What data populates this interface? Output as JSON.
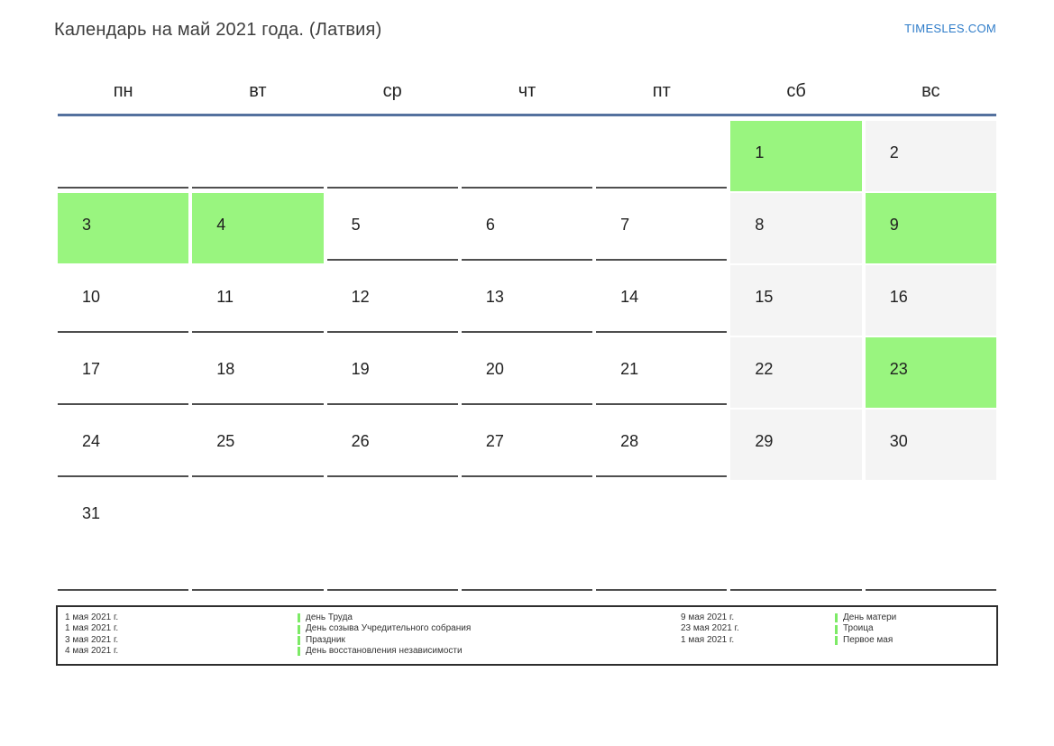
{
  "page": {
    "title": "Календарь на май 2021 года. (Латвия)",
    "brand": "TIMESLES.COM"
  },
  "calendar": {
    "weekdays": [
      "пн",
      "вт",
      "ср",
      "чт",
      "пт",
      "сб",
      "вс"
    ],
    "weeks": [
      [
        {
          "day": "",
          "type": "empty"
        },
        {
          "day": "",
          "type": "empty"
        },
        {
          "day": "",
          "type": "empty"
        },
        {
          "day": "",
          "type": "empty"
        },
        {
          "day": "",
          "type": "empty"
        },
        {
          "day": "1",
          "type": "holiday"
        },
        {
          "day": "2",
          "type": "weekend"
        }
      ],
      [
        {
          "day": "3",
          "type": "holiday"
        },
        {
          "day": "4",
          "type": "holiday"
        },
        {
          "day": "5",
          "type": "normal"
        },
        {
          "day": "6",
          "type": "normal"
        },
        {
          "day": "7",
          "type": "normal"
        },
        {
          "day": "8",
          "type": "weekend"
        },
        {
          "day": "9",
          "type": "holiday"
        }
      ],
      [
        {
          "day": "10",
          "type": "normal"
        },
        {
          "day": "11",
          "type": "normal"
        },
        {
          "day": "12",
          "type": "normal"
        },
        {
          "day": "13",
          "type": "normal"
        },
        {
          "day": "14",
          "type": "normal"
        },
        {
          "day": "15",
          "type": "weekend"
        },
        {
          "day": "16",
          "type": "weekend"
        }
      ],
      [
        {
          "day": "17",
          "type": "normal"
        },
        {
          "day": "18",
          "type": "normal"
        },
        {
          "day": "19",
          "type": "normal"
        },
        {
          "day": "20",
          "type": "normal"
        },
        {
          "day": "21",
          "type": "normal"
        },
        {
          "day": "22",
          "type": "weekend"
        },
        {
          "day": "23",
          "type": "holiday"
        }
      ],
      [
        {
          "day": "24",
          "type": "normal"
        },
        {
          "day": "25",
          "type": "normal"
        },
        {
          "day": "26",
          "type": "normal"
        },
        {
          "day": "27",
          "type": "normal"
        },
        {
          "day": "28",
          "type": "normal"
        },
        {
          "day": "29",
          "type": "weekend"
        },
        {
          "day": "30",
          "type": "weekend"
        }
      ],
      [
        {
          "day": "31",
          "type": "normal"
        },
        {
          "day": "",
          "type": "empty"
        },
        {
          "day": "",
          "type": "empty"
        },
        {
          "day": "",
          "type": "empty"
        },
        {
          "day": "",
          "type": "empty"
        },
        {
          "day": "",
          "type": "empty"
        },
        {
          "day": "",
          "type": "empty"
        }
      ]
    ]
  },
  "legend": {
    "left": [
      {
        "date": "1 мая 2021 г.",
        "name": "день Труда"
      },
      {
        "date": "1 мая 2021 г.",
        "name": "День созыва Учредительного собрания"
      },
      {
        "date": "3 мая 2021 г.",
        "name": "Праздник"
      },
      {
        "date": "4 мая 2021 г.",
        "name": "День восстановления независимости"
      }
    ],
    "right": [
      {
        "date": "9 мая 2021 г.",
        "name": "День матери"
      },
      {
        "date": "23 мая 2021 г.",
        "name": "Троица"
      },
      {
        "date": "1 мая 2021 г.",
        "name": "Первое мая"
      }
    ]
  },
  "colors": {
    "holiday_green": "#99f57f",
    "weekend_gray": "#f4f4f4",
    "header_line_blue": "#54719e",
    "brand_blue": "#2e7cc9",
    "legend_marker_green": "#7dea66"
  }
}
